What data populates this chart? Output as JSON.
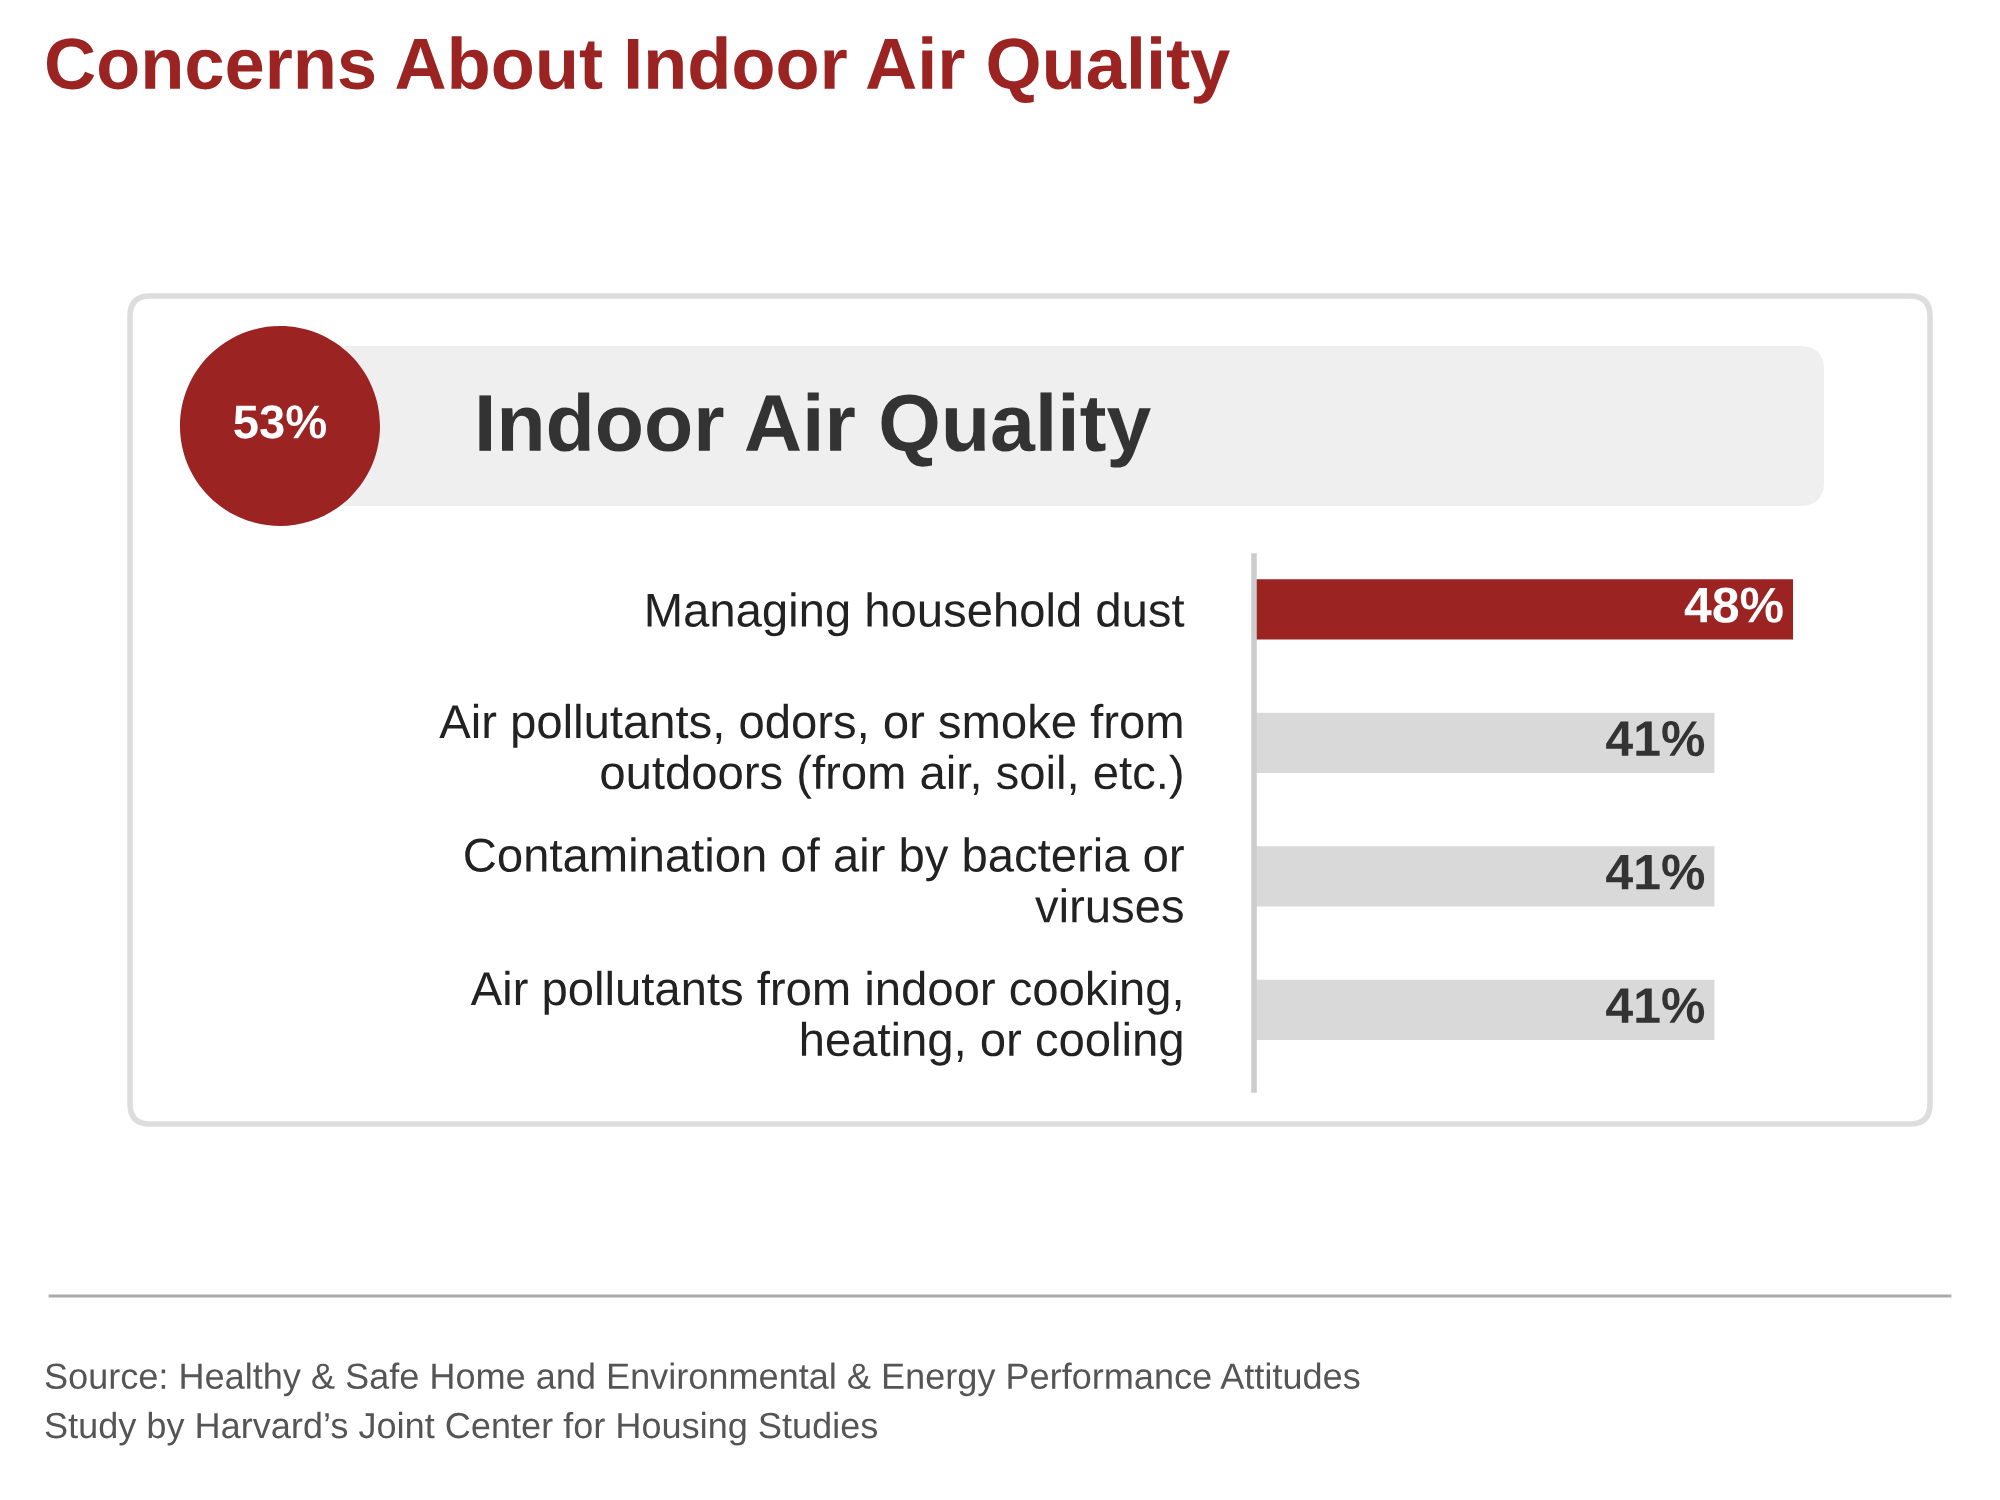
{
  "chart_data": {
    "type": "bar",
    "orientation": "horizontal",
    "title": "Concerns About Indoor Air Quality",
    "subtitle": "Indoor Air Quality",
    "categories": [
      "Managing household dust",
      "Air pollutants, odors, or smoke from\noutdoors (from air, soil, etc.)",
      "Contamination of air by bacteria or\nviruses",
      "Air pollutants from indoor cooking,\nheating, or cooling"
    ],
    "values": [
      48,
      41,
      41,
      41
    ],
    "colors": [
      "#9b2423",
      "#d9d9d9",
      "#d9d9d9",
      "#d9d9d9"
    ],
    "value_labels": [
      "48%",
      "41%",
      "41%",
      "41%"
    ],
    "annotations": [
      "53%",
      "Source: Healthy & Safe Home and Environmental & Energy Performance Attitudes\nStudy by Harvard’s Joint Center for Housing Studies"
    ],
    "tick_labels": "y",
    "grid": false,
    "legend": false
  }
}
